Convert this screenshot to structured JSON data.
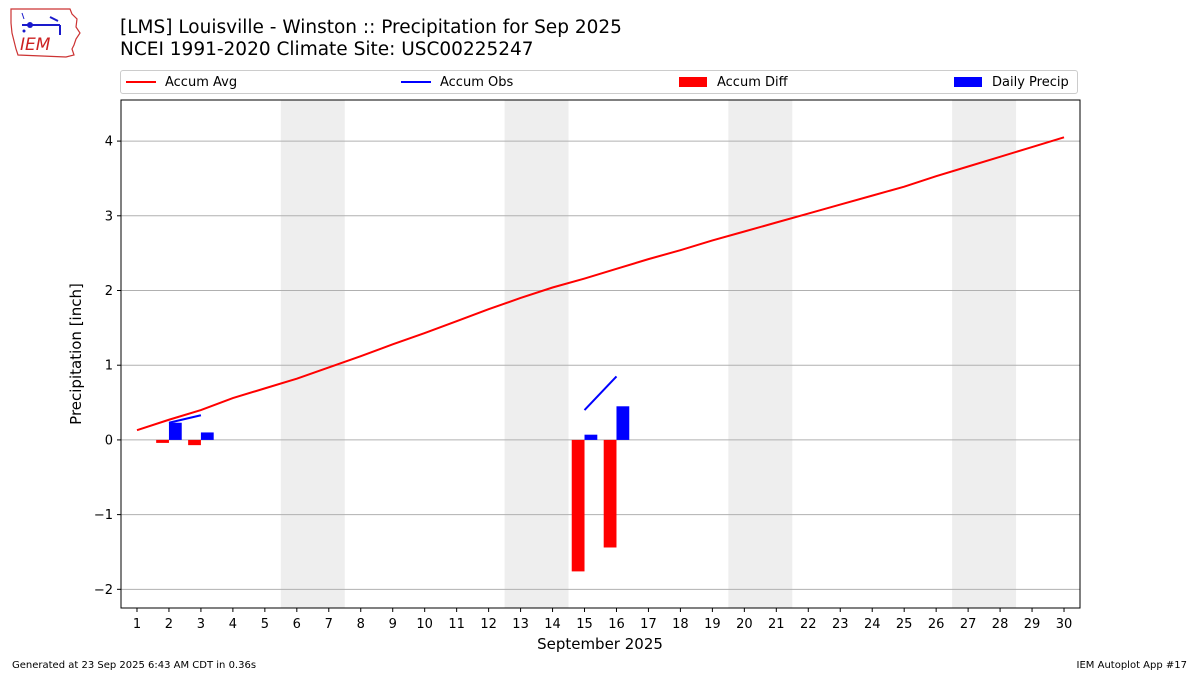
{
  "header": {
    "title_line1": "[LMS] Louisville - Winston :: Precipitation for Sep 2025",
    "title_line2": "NCEI 1991-2020 Climate Site: USC00225247",
    "logo_text": "IEM",
    "logo_icon": "iowa-weather-station-icon"
  },
  "legend": {
    "placement": "top (above plot)",
    "items": [
      {
        "label": "Accum Avg",
        "kind": "line",
        "color": "#ff0000"
      },
      {
        "label": "Accum Obs",
        "kind": "line",
        "color": "#0000ff"
      },
      {
        "label": "Accum Diff",
        "kind": "patch",
        "color": "#ff0000"
      },
      {
        "label": "Daily Precip",
        "kind": "patch",
        "color": "#0000ff"
      }
    ]
  },
  "footer": {
    "generated": "Generated at 23 Sep 2025 6:43 AM CDT in 0.36s",
    "app": "IEM Autoplot App #17"
  },
  "colors": {
    "avg": "#ff0000",
    "obs": "#0000ff",
    "diff": "#ff0000",
    "daily": "#0000ff",
    "weekend_band": "#eeeeee",
    "grid": "#b0b0b0"
  },
  "chart_data": {
    "type": "bar",
    "title": "[LMS] Louisville - Winston :: Precipitation for Sep 2025",
    "xlabel": "September 2025",
    "ylabel": "Precipitation [inch]",
    "xlim": [
      0.5,
      30.5
    ],
    "ylim": [
      -2.25,
      4.55
    ],
    "x_ticks": [
      1,
      2,
      3,
      4,
      5,
      6,
      7,
      8,
      9,
      10,
      11,
      12,
      13,
      14,
      15,
      16,
      17,
      18,
      19,
      20,
      21,
      22,
      23,
      24,
      25,
      26,
      27,
      28,
      29,
      30
    ],
    "y_ticks": [
      -2,
      -1,
      0,
      1,
      2,
      3,
      4
    ],
    "y_tick_labels": [
      "−2",
      "−1",
      "0",
      "1",
      "2",
      "3",
      "4"
    ],
    "grid": "horizontal",
    "weekend_bands": [
      [
        5.5,
        7.5
      ],
      [
        12.5,
        14.5
      ],
      [
        19.5,
        21.5
      ],
      [
        26.5,
        28.5
      ]
    ],
    "series": [
      {
        "name": "Accum Avg",
        "kind": "line",
        "x": [
          1,
          2,
          3,
          4,
          5,
          6,
          7,
          8,
          9,
          10,
          11,
          12,
          13,
          14,
          15,
          16,
          17,
          18,
          19,
          20,
          21,
          22,
          23,
          24,
          25,
          26,
          27,
          28,
          29,
          30
        ],
        "values": [
          0.13,
          0.27,
          0.4,
          0.56,
          0.69,
          0.82,
          0.97,
          1.12,
          1.28,
          1.43,
          1.59,
          1.75,
          1.9,
          2.04,
          2.16,
          2.29,
          2.42,
          2.54,
          2.67,
          2.79,
          2.91,
          3.03,
          3.15,
          3.27,
          3.39,
          3.53,
          3.66,
          3.79,
          3.92,
          4.05
        ]
      },
      {
        "name": "Accum Obs",
        "kind": "line",
        "segments": [
          {
            "x": [
              2,
              3
            ],
            "values": [
              0.23,
              0.33
            ]
          },
          {
            "x": [
              15,
              16
            ],
            "values": [
              0.4,
              0.85
            ]
          }
        ]
      },
      {
        "name": "Accum Diff",
        "kind": "bar",
        "x": [
          2,
          3,
          15,
          16
        ],
        "values": [
          -0.04,
          -0.07,
          -1.76,
          -1.44
        ]
      },
      {
        "name": "Daily Precip",
        "kind": "bar",
        "x": [
          2,
          3,
          15,
          16
        ],
        "values": [
          0.23,
          0.1,
          0.07,
          0.45
        ]
      }
    ]
  }
}
